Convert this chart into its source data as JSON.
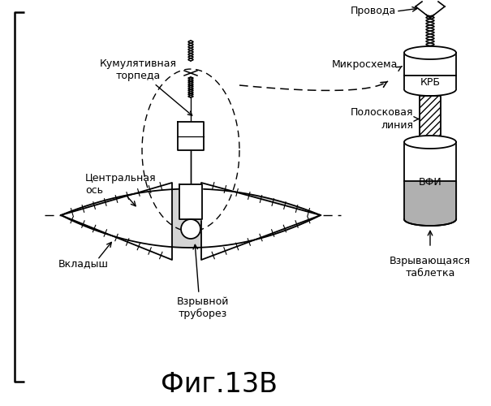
{
  "title": "Фиг.13В",
  "title_fontsize": 24,
  "bg_color": "#ffffff",
  "line_color": "#000000",
  "labels": {
    "provoda": "Провода",
    "mikroskhema": "Микросхема",
    "krb": "КРБ",
    "poloskovaya": "Полосковая\nлиния",
    "vfi": "ВФИ",
    "vzryvayushchaya": "Взрывающаяся\nтаблетка",
    "kumul": "Кумулятивная\nторпеда",
    "centralnaya": "Центральная\nось",
    "vkladysh": "Вкладыш",
    "vzryvnoy": "Взрывной\nтруборез"
  }
}
